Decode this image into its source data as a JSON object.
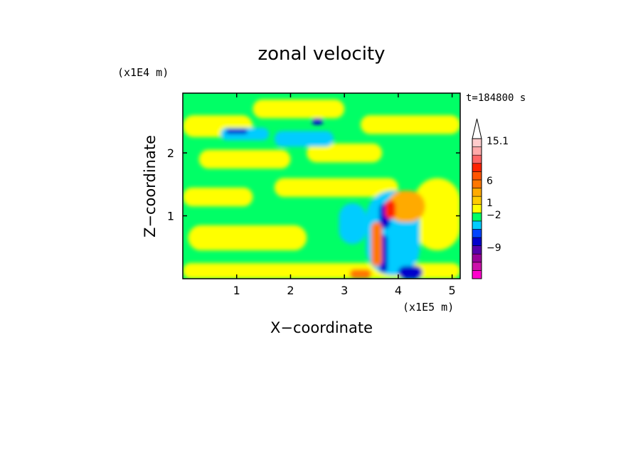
{
  "chart_data": {
    "type": "heatmap",
    "title": "zonal velocity",
    "xlabel": "X−coordinate",
    "ylabel": "Z−coordinate",
    "x_multiplier": "(x1E5 m)",
    "y_multiplier": "(x1E4 m)",
    "time_label": "t=184800 s",
    "xlim": [
      0,
      5.15
    ],
    "ylim": [
      0,
      2.95
    ],
    "x_ticks": [
      1,
      2,
      3,
      4,
      5
    ],
    "y_ticks": [
      1,
      2
    ],
    "grid": false,
    "colorbar": {
      "position": "right",
      "labels": [
        {
          "text": "15.1",
          "level": 15.1
        },
        {
          "text": "6",
          "level": 6
        },
        {
          "text": "1",
          "level": 1
        },
        {
          "text": "−2",
          "level": -2
        },
        {
          "text": "−9",
          "level": -9
        }
      ],
      "bands": [
        {
          "color": "#ff00cc"
        },
        {
          "color": "#cc11aa"
        },
        {
          "color": "#990099"
        },
        {
          "color": "#5500aa"
        },
        {
          "color": "#0000cc"
        },
        {
          "color": "#0044ff"
        },
        {
          "color": "#00ccff"
        },
        {
          "color": "#00ff66"
        },
        {
          "color": "#ffff00"
        },
        {
          "color": "#ffcc00"
        },
        {
          "color": "#ffaa00"
        },
        {
          "color": "#ff7700"
        },
        {
          "color": "#ff5500"
        },
        {
          "color": "#ff2200"
        },
        {
          "color": "#ff6666"
        },
        {
          "color": "#ffaaaa"
        },
        {
          "color": "#ffcccc"
        }
      ]
    },
    "field": {
      "background_color": "#00ff66",
      "patches": [
        {
          "x": [
            0,
            5.15
          ],
          "y": [
            0.0,
            0.25
          ],
          "color": "#ffff00"
        },
        {
          "x": [
            0.1,
            2.3
          ],
          "y": [
            0.45,
            0.85
          ],
          "color": "#ffff00"
        },
        {
          "x": [
            0,
            1.3
          ],
          "y": [
            1.15,
            1.45
          ],
          "color": "#ffff00"
        },
        {
          "x": [
            1.7,
            4.0
          ],
          "y": [
            1.3,
            1.6
          ],
          "color": "#ffff00"
        },
        {
          "x": [
            0.3,
            2.0
          ],
          "y": [
            1.75,
            2.05
          ],
          "color": "#ffff00"
        },
        {
          "x": [
            2.3,
            3.7
          ],
          "y": [
            1.85,
            2.15
          ],
          "color": "#ffff00"
        },
        {
          "x": [
            0,
            1.3
          ],
          "y": [
            2.25,
            2.6
          ],
          "color": "#ffff00"
        },
        {
          "x": [
            1.3,
            3.0
          ],
          "y": [
            2.55,
            2.85
          ],
          "color": "#ffff00"
        },
        {
          "x": [
            3.3,
            5.15
          ],
          "y": [
            2.3,
            2.6
          ],
          "color": "#ffff00"
        },
        {
          "x": [
            4.3,
            5.15
          ],
          "y": [
            0.45,
            1.6
          ],
          "color": "#ffff00"
        },
        {
          "x": [
            2.9,
            3.4
          ],
          "y": [
            0.55,
            1.2
          ],
          "color": "#00ccff"
        },
        {
          "x": [
            1.7,
            2.8
          ],
          "y": [
            2.1,
            2.35
          ],
          "color": "#00ccff"
        },
        {
          "x": [
            0.7,
            1.6
          ],
          "y": [
            2.2,
            2.4
          ],
          "color": "#00ccff"
        },
        {
          "x": [
            3.4,
            4.4
          ],
          "y": [
            0.05,
            1.4
          ],
          "color": "#00ccff"
        },
        {
          "x": [
            0.8,
            1.2
          ],
          "y": [
            2.3,
            2.38
          ],
          "color": "#0000cc"
        },
        {
          "x": [
            2.4,
            2.6
          ],
          "y": [
            2.45,
            2.55
          ],
          "color": "#0000cc"
        },
        {
          "x": [
            3.65,
            3.85
          ],
          "y": [
            0.8,
            1.2
          ],
          "color": "#0000cc"
        },
        {
          "x": [
            3.65,
            3.8
          ],
          "y": [
            0.1,
            0.7
          ],
          "color": "#0000cc"
        },
        {
          "x": [
            4.0,
            4.45
          ],
          "y": [
            0.0,
            0.2
          ],
          "color": "#0000cc"
        },
        {
          "x": [
            3.8,
            4.5
          ],
          "y": [
            0.9,
            1.4
          ],
          "color": "#ffaa00"
        },
        {
          "x": [
            3.1,
            3.5
          ],
          "y": [
            0.0,
            0.15
          ],
          "color": "#ff7700"
        },
        {
          "x": [
            3.75,
            3.95
          ],
          "y": [
            0.95,
            1.25
          ],
          "color": "#ff2200"
        },
        {
          "x": [
            3.5,
            3.7
          ],
          "y": [
            0.2,
            0.9
          ],
          "color": "#ff7700"
        }
      ]
    }
  }
}
